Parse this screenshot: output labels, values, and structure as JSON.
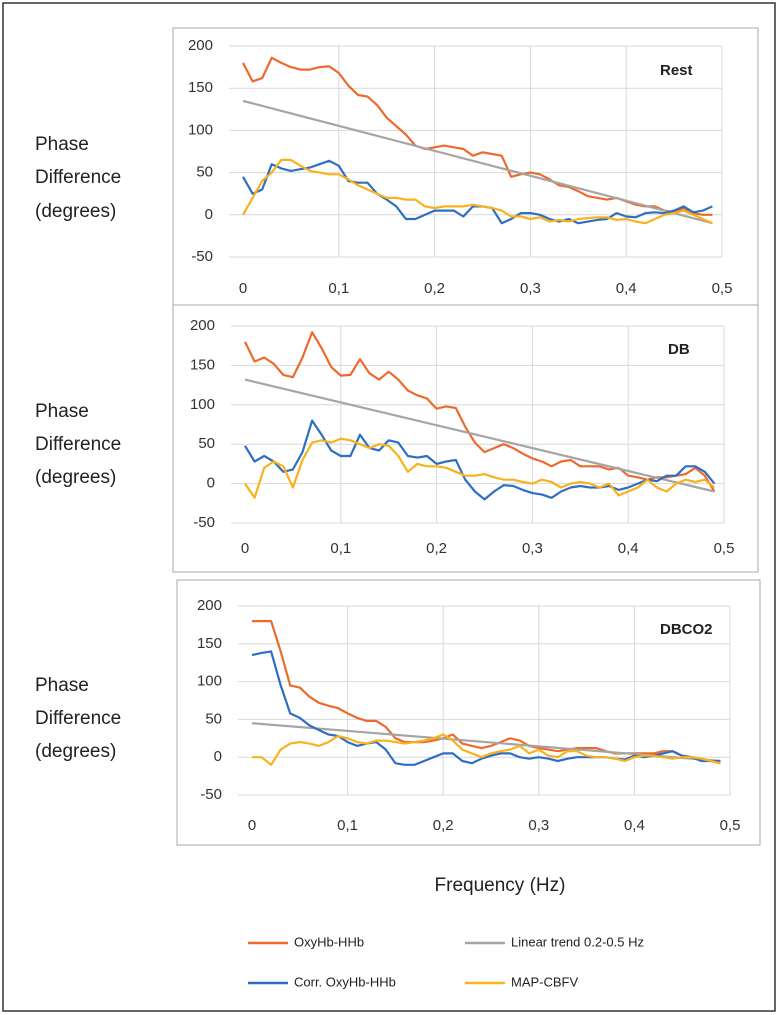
{
  "chart_data": [
    {
      "type": "line",
      "title": "Rest",
      "y_label": [
        "Phase",
        "Difference",
        "(degrees)"
      ],
      "x": [
        0,
        0.01,
        0.02,
        0.03,
        0.04,
        0.05,
        0.06,
        0.07,
        0.08,
        0.09,
        0.1,
        0.11,
        0.12,
        0.13,
        0.14,
        0.15,
        0.16,
        0.17,
        0.18,
        0.19,
        0.2,
        0.21,
        0.22,
        0.23,
        0.24,
        0.25,
        0.26,
        0.27,
        0.28,
        0.29,
        0.3,
        0.31,
        0.32,
        0.33,
        0.34,
        0.35,
        0.36,
        0.37,
        0.38,
        0.39,
        0.4,
        0.41,
        0.42,
        0.43,
        0.44,
        0.45,
        0.46,
        0.47,
        0.48,
        0.49
      ],
      "series": [
        {
          "values": [
            180,
            158,
            162,
            186,
            180,
            175,
            172,
            172,
            175,
            176,
            168,
            153,
            142,
            140,
            130,
            115,
            105,
            95,
            82,
            78,
            80,
            82,
            80,
            78,
            70,
            74,
            72,
            70,
            45,
            48,
            50,
            48,
            42,
            35,
            33,
            28,
            22,
            20,
            18,
            20,
            16,
            12,
            10,
            10,
            5,
            3,
            8,
            2,
            0,
            0
          ]
        },
        {
          "x": [
            0,
            0.49
          ],
          "values": [
            135,
            -10
          ]
        },
        {
          "values": [
            45,
            25,
            30,
            60,
            55,
            52,
            54,
            56,
            60,
            64,
            58,
            40,
            38,
            38,
            25,
            18,
            10,
            -5,
            -5,
            0,
            5,
            5,
            5,
            -2,
            10,
            10,
            8,
            -10,
            -5,
            2,
            2,
            0,
            -5,
            -8,
            -5,
            -10,
            -8,
            -6,
            -5,
            2,
            -2,
            -3,
            2,
            3,
            2,
            5,
            10,
            3,
            5,
            10
          ]
        },
        {
          "values": [
            0,
            20,
            40,
            50,
            65,
            65,
            58,
            52,
            50,
            48,
            48,
            42,
            35,
            30,
            25,
            20,
            20,
            18,
            18,
            10,
            8,
            10,
            10,
            10,
            12,
            10,
            8,
            5,
            -2,
            -2,
            -5,
            -3,
            -8,
            -6,
            -8,
            -5,
            -4,
            -3,
            -3,
            -6,
            -5,
            -8,
            -10,
            -5,
            0,
            2,
            5,
            0,
            -5,
            -10
          ]
        }
      ],
      "xlim": [
        0,
        0.5
      ],
      "xticks": [
        0,
        {
          "value": 0.1,
          "label": "0,1"
        },
        {
          "value": 0.2,
          "label": "0,2"
        },
        {
          "value": 0.3,
          "label": "0,3"
        },
        {
          "value": 0.4,
          "label": "0,4"
        },
        {
          "value": 0.5,
          "label": "0,5"
        }
      ],
      "ylim": [
        -50,
        200
      ],
      "yticks": [
        -50,
        0,
        50,
        100,
        150,
        200
      ],
      "grid": true
    },
    {
      "type": "line",
      "title": "DB",
      "y_label": [
        "Phase",
        "Difference",
        "(degrees)"
      ],
      "x": [
        0,
        0.01,
        0.02,
        0.03,
        0.04,
        0.05,
        0.06,
        0.07,
        0.08,
        0.09,
        0.1,
        0.11,
        0.12,
        0.13,
        0.14,
        0.15,
        0.16,
        0.17,
        0.18,
        0.19,
        0.2,
        0.21,
        0.22,
        0.23,
        0.24,
        0.25,
        0.26,
        0.27,
        0.28,
        0.29,
        0.3,
        0.31,
        0.32,
        0.33,
        0.34,
        0.35,
        0.36,
        0.37,
        0.38,
        0.39,
        0.4,
        0.41,
        0.42,
        0.43,
        0.44,
        0.45,
        0.46,
        0.47,
        0.48,
        0.49
      ],
      "series": [
        {
          "values": [
            180,
            155,
            160,
            152,
            138,
            135,
            160,
            192,
            172,
            148,
            137,
            138,
            158,
            140,
            132,
            142,
            132,
            118,
            112,
            108,
            95,
            98,
            96,
            72,
            52,
            40,
            45,
            50,
            45,
            38,
            32,
            28,
            22,
            28,
            30,
            22,
            22,
            22,
            18,
            20,
            10,
            8,
            5,
            8,
            8,
            10,
            12,
            20,
            10,
            -10
          ]
        },
        {
          "x": [
            0,
            0.49
          ],
          "values": [
            132,
            -10
          ]
        },
        {
          "values": [
            48,
            28,
            35,
            28,
            15,
            18,
            40,
            80,
            62,
            42,
            35,
            35,
            62,
            45,
            42,
            55,
            52,
            35,
            33,
            35,
            25,
            28,
            30,
            5,
            -10,
            -20,
            -10,
            -2,
            -3,
            -8,
            -12,
            -14,
            -18,
            -10,
            -5,
            -3,
            -5,
            -5,
            -3,
            -8,
            -5,
            0,
            5,
            3,
            10,
            10,
            22,
            22,
            15,
            0
          ]
        },
        {
          "values": [
            0,
            -18,
            20,
            28,
            22,
            -5,
            30,
            52,
            55,
            52,
            57,
            55,
            50,
            45,
            50,
            48,
            35,
            15,
            25,
            22,
            22,
            20,
            15,
            10,
            10,
            12,
            8,
            5,
            5,
            2,
            0,
            5,
            2,
            -5,
            0,
            2,
            0,
            -5,
            0,
            -15,
            -10,
            -5,
            5,
            -5,
            -10,
            0,
            5,
            2,
            5,
            -5
          ]
        }
      ],
      "xlim": [
        0,
        0.5
      ],
      "xticks": [
        0,
        {
          "value": 0.1,
          "label": "0,1"
        },
        {
          "value": 0.2,
          "label": "0,2"
        },
        {
          "value": 0.3,
          "label": "0,3"
        },
        {
          "value": 0.4,
          "label": "0,4"
        },
        {
          "value": 0.5,
          "label": "0,5"
        }
      ],
      "ylim": [
        -50,
        200
      ],
      "yticks": [
        -50,
        0,
        50,
        100,
        150,
        200
      ],
      "grid": true
    },
    {
      "type": "line",
      "title": "DBCO2",
      "y_label": [
        "Phase",
        "Difference",
        "(degrees)"
      ],
      "x": [
        0,
        0.01,
        0.02,
        0.03,
        0.04,
        0.05,
        0.06,
        0.07,
        0.08,
        0.09,
        0.1,
        0.11,
        0.12,
        0.13,
        0.14,
        0.15,
        0.16,
        0.17,
        0.18,
        0.19,
        0.2,
        0.21,
        0.22,
        0.23,
        0.24,
        0.25,
        0.26,
        0.27,
        0.28,
        0.29,
        0.3,
        0.31,
        0.32,
        0.33,
        0.34,
        0.35,
        0.36,
        0.37,
        0.38,
        0.39,
        0.4,
        0.41,
        0.42,
        0.43,
        0.44,
        0.45,
        0.46,
        0.47,
        0.48,
        0.49
      ],
      "series": [
        {
          "values": [
            180,
            180,
            180,
            140,
            95,
            92,
            80,
            72,
            68,
            65,
            58,
            52,
            48,
            48,
            40,
            25,
            20,
            20,
            20,
            22,
            25,
            30,
            18,
            15,
            12,
            15,
            20,
            25,
            22,
            15,
            12,
            10,
            8,
            10,
            12,
            12,
            12,
            8,
            5,
            5,
            5,
            5,
            5,
            8,
            8,
            2,
            0,
            -2,
            -5,
            -8
          ]
        },
        {
          "x": [
            0,
            0.49
          ],
          "values": [
            45,
            -5
          ]
        },
        {
          "values": [
            135,
            138,
            140,
            95,
            58,
            52,
            42,
            36,
            30,
            28,
            20,
            15,
            18,
            20,
            10,
            -8,
            -10,
            -10,
            -5,
            0,
            5,
            5,
            -5,
            -8,
            -2,
            2,
            5,
            5,
            0,
            -2,
            0,
            -2,
            -5,
            -2,
            0,
            0,
            0,
            0,
            -2,
            -3,
            2,
            0,
            2,
            5,
            8,
            2,
            0,
            -5,
            -5,
            -5
          ]
        },
        {
          "values": [
            0,
            0,
            -10,
            10,
            18,
            20,
            18,
            15,
            20,
            28,
            25,
            20,
            18,
            22,
            22,
            20,
            18,
            20,
            22,
            25,
            30,
            22,
            10,
            5,
            0,
            5,
            8,
            10,
            15,
            5,
            10,
            2,
            0,
            8,
            8,
            2,
            0,
            0,
            -2,
            -5,
            0,
            2,
            2,
            0,
            -2,
            0,
            0,
            -2,
            -5,
            -8
          ]
        }
      ],
      "xlim": [
        0,
        0.5
      ],
      "xticks": [
        0,
        {
          "value": 0.1,
          "label": "0,1"
        },
        {
          "value": 0.2,
          "label": "0,2"
        },
        {
          "value": 0.3,
          "label": "0,3"
        },
        {
          "value": 0.4,
          "label": "0,4"
        },
        {
          "value": 0.5,
          "label": "0,5"
        }
      ],
      "ylim": [
        -50,
        200
      ],
      "yticks": [
        -50,
        0,
        50,
        100,
        150,
        200
      ],
      "grid": true
    }
  ],
  "x_label": "Frequency (Hz)",
  "legend": [
    {
      "name": "OxyHb-HHb",
      "color": "#ee6a2c"
    },
    {
      "name": "Linear trend 0.2-0.5 Hz",
      "color": "#a5a5a5"
    },
    {
      "name": "Corr. OxyHb-HHb",
      "color": "#2e6ec4"
    },
    {
      "name": "MAP-CBFV",
      "color": "#f7b21c"
    }
  ]
}
